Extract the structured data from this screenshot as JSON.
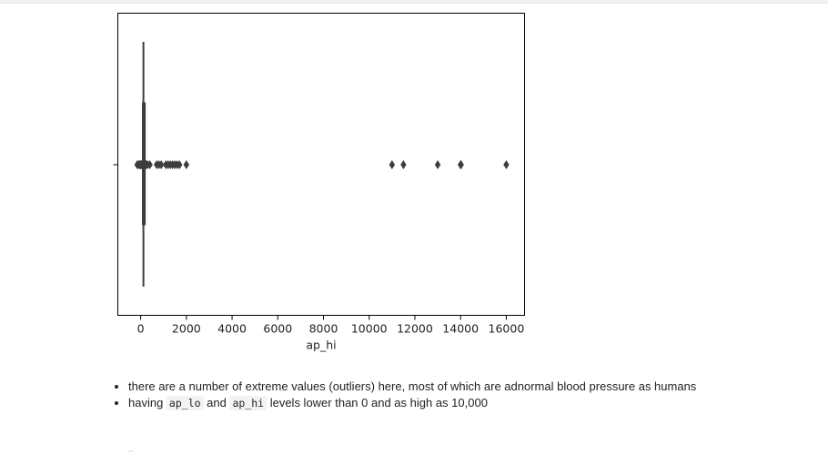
{
  "chart_data": {
    "type": "boxplot",
    "orientation": "horizontal",
    "xlabel": "ap_hi",
    "xlim": [
      -1000,
      16800
    ],
    "xticks": [
      0,
      2000,
      4000,
      6000,
      8000,
      10000,
      12000,
      14000,
      16000
    ],
    "xtick_labels": [
      "0",
      "2000",
      "4000",
      "6000",
      "8000",
      "10000",
      "12000",
      "14000",
      "16000"
    ],
    "box": {
      "q1": 120,
      "median": 120,
      "q3": 140,
      "whisker_low": 90,
      "whisker_high": 170
    },
    "outliers": [
      -150,
      -100,
      -50,
      0,
      10,
      20,
      50,
      60,
      80,
      200,
      220,
      240,
      300,
      401,
      700,
      800,
      900,
      1100,
      1200,
      1300,
      1400,
      1500,
      1600,
      1700,
      2000,
      11000,
      11500,
      13000,
      14000,
      14020,
      16000
    ],
    "grid": false,
    "colors": {
      "box_line": "#3d3d3d",
      "axes": "#000000",
      "marker": "#3d3d3d"
    }
  },
  "notes": [
    {
      "parts": [
        {
          "text": "there are a number of extreme values (outliers) here, most of which are adnormal blood pressure as humans"
        }
      ]
    },
    {
      "parts": [
        {
          "text": "having "
        },
        {
          "text": "ap_lo",
          "code": true
        },
        {
          "text": " and "
        },
        {
          "text": "ap_hi",
          "code": true
        },
        {
          "text": " levels lower than 0 and as high as 10,000"
        }
      ]
    }
  ]
}
